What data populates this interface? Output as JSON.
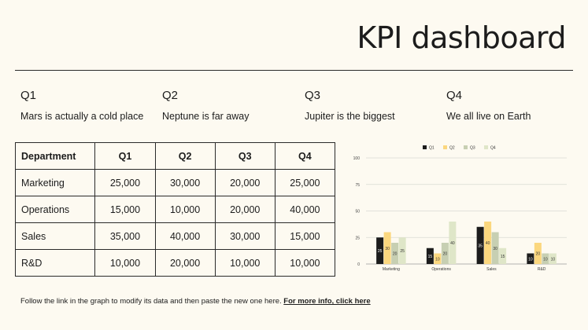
{
  "title": "KPI dashboard",
  "quarters": [
    {
      "label": "Q1",
      "desc": "Mars is actually a cold place"
    },
    {
      "label": "Q2",
      "desc": "Neptune is far away"
    },
    {
      "label": "Q3",
      "desc": "Jupiter is the biggest"
    },
    {
      "label": "Q4",
      "desc": "We all live on Earth"
    }
  ],
  "table": {
    "headers": [
      "Department",
      "Q1",
      "Q2",
      "Q3",
      "Q4"
    ],
    "rows": [
      [
        "Marketing",
        "25,000",
        "30,000",
        "20,000",
        "25,000"
      ],
      [
        "Operations",
        "15,000",
        "10,000",
        "20,000",
        "40,000"
      ],
      [
        "Sales",
        "35,000",
        "40,000",
        "30,000",
        "15,000"
      ],
      [
        "R&D",
        "10,000",
        "20,000",
        "10,000",
        "10,000"
      ]
    ]
  },
  "chart_data": {
    "type": "bar",
    "categories": [
      "Marketing",
      "Operations",
      "Sales",
      "R&D"
    ],
    "series": [
      {
        "name": "Q1",
        "values": [
          25,
          15,
          35,
          10
        ],
        "color": "#1c1c1c"
      },
      {
        "name": "Q2",
        "values": [
          30,
          10,
          40,
          20
        ],
        "color": "#fbd77e"
      },
      {
        "name": "Q3",
        "values": [
          20,
          20,
          30,
          10
        ],
        "color": "#c7cfb2"
      },
      {
        "name": "Q4",
        "values": [
          25,
          40,
          15,
          10
        ],
        "color": "#dfe6c8"
      }
    ],
    "yticks": [
      0,
      25,
      50,
      75,
      100
    ],
    "ylim": [
      0,
      100
    ],
    "grid": true,
    "legend": "top-center",
    "data_labels": true
  },
  "footer": {
    "text": "Follow the link in the graph to modify its data and then paste the new one here. ",
    "link": "For more info, click here"
  }
}
